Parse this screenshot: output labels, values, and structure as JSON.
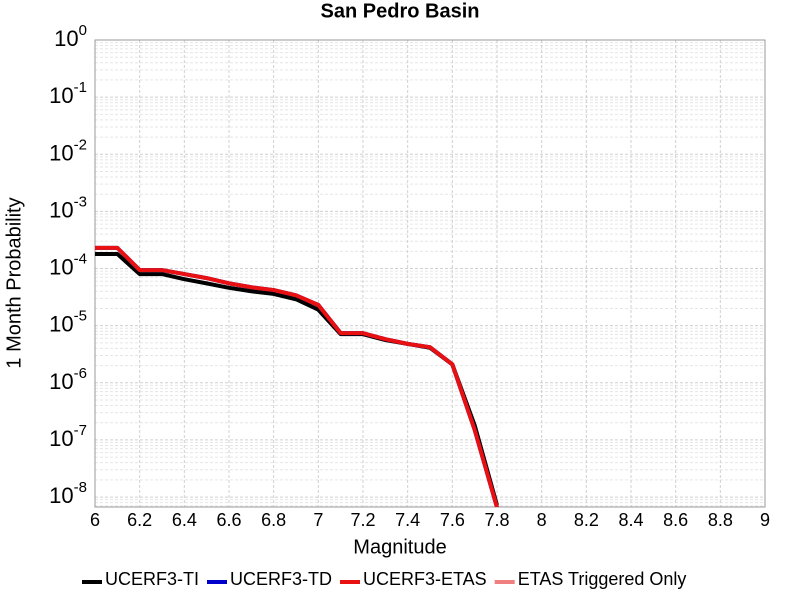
{
  "chart_data": {
    "type": "line",
    "title": "San Pedro Basin",
    "xlabel": "Magnitude",
    "ylabel": "1 Month Probability",
    "x": [
      6.0,
      6.1,
      6.2,
      6.3,
      6.4,
      6.5,
      6.6,
      6.7,
      6.8,
      6.9,
      7.0,
      7.1,
      7.2,
      7.3,
      7.4,
      7.5,
      7.6,
      7.7,
      7.8
    ],
    "series": [
      {
        "name": "UCERF3-TI",
        "color": "#000000",
        "values": [
          0.00018,
          0.00018,
          8e-05,
          8e-05,
          6.5e-05,
          5.5e-05,
          4.6e-05,
          4e-05,
          3.6e-05,
          2.9e-05,
          1.9e-05,
          7.1e-06,
          7.1e-06,
          5.6e-06,
          4.8e-06,
          4.1e-06,
          2.1e-06,
          1.8e-07,
          7.2e-09
        ]
      },
      {
        "name": "UCERF3-TD",
        "color": "#0000cc",
        "values": [
          0.00023,
          0.00023,
          9.4e-05,
          9.4e-05,
          8e-05,
          6.8e-05,
          5.5e-05,
          4.7e-05,
          4.2e-05,
          3.4e-05,
          2.3e-05,
          7.4e-06,
          7.4e-06,
          5.8e-06,
          4.8e-06,
          4.2e-06,
          2.1e-06,
          1.5e-07,
          6.6e-09
        ]
      },
      {
        "name": "UCERF3-ETAS",
        "color": "#e81010",
        "values": [
          0.00023,
          0.00023,
          9.4e-05,
          9.4e-05,
          8e-05,
          6.8e-05,
          5.5e-05,
          4.7e-05,
          4.2e-05,
          3.4e-05,
          2.3e-05,
          7.4e-06,
          7.4e-06,
          5.8e-06,
          4.8e-06,
          4.2e-06,
          2.1e-06,
          1.5e-07,
          6.6e-09
        ]
      },
      {
        "name": "ETAS Triggered Only",
        "color": "#f08080",
        "values": [
          null,
          null,
          null,
          null,
          null,
          null,
          null,
          null,
          null,
          null,
          null,
          null,
          null,
          null,
          null,
          null,
          null,
          null,
          null
        ]
      }
    ],
    "xlim": [
      6,
      9
    ],
    "xticks": [
      6,
      6.2,
      6.4,
      6.6,
      6.8,
      7,
      7.2,
      7.4,
      7.6,
      7.8,
      8,
      8.2,
      8.4,
      8.6,
      8.8,
      9
    ],
    "ylim": [
      6.7e-09,
      1
    ],
    "ylog": true,
    "yticks": [
      {
        "value": 1,
        "label": "10^0"
      },
      {
        "value": 0.1,
        "label": "10^-1"
      },
      {
        "value": 0.01,
        "label": "10^-2"
      },
      {
        "value": 0.001,
        "label": "10^-3"
      },
      {
        "value": 0.0001,
        "label": "10^-4"
      },
      {
        "value": 1e-05,
        "label": "10^-5"
      },
      {
        "value": 1e-06,
        "label": "10^-6"
      },
      {
        "value": 1e-07,
        "label": "10^-7"
      },
      {
        "value": 1e-08,
        "label": "10^-8"
      }
    ],
    "grid": true,
    "legend": "bottom"
  }
}
